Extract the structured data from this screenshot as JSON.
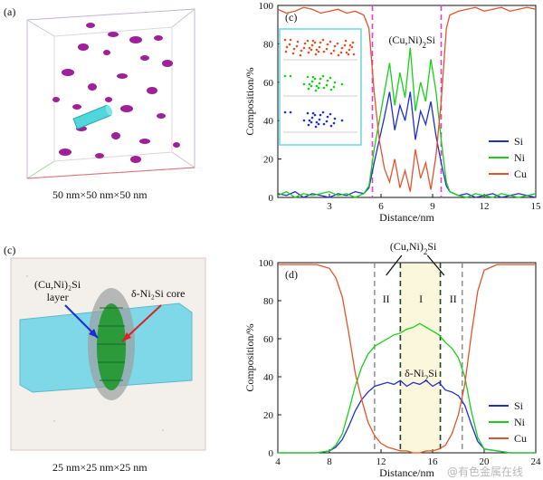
{
  "figure": {
    "panel_a": {
      "label": "(a)",
      "caption": "50 nm×50 nm×50 nm"
    },
    "panel_c_top": {
      "label": "(c)",
      "caption": "25 nm×25 nm×25 nm",
      "ann_layer": "(Cu,Ni)₂Si\nlayer",
      "ann_core": "δ-Ni₂Si core"
    },
    "watermark": "@有色金属在线"
  },
  "colors": {
    "Si": "#1f2fd0",
    "Ni": "#19d019",
    "Cu": "#e2552b",
    "dash_magenta": "#e040d0",
    "dash_gray": "#888888",
    "dash_dark": "#224422",
    "band": "#fbf7dc"
  },
  "chart_data": [
    {
      "type": "line",
      "panel_label": "(c)",
      "annotation": "(Cu,Ni)₂Si",
      "xlabel": "Distance/nm",
      "ylabel": "Composition/%",
      "xlim": [
        0,
        15
      ],
      "ylim": [
        0,
        100
      ],
      "xticks": [
        3,
        6,
        9,
        12,
        15
      ],
      "yticks": [
        0,
        20,
        40,
        60,
        80,
        100
      ],
      "vlines": [
        5.5,
        9.5
      ],
      "legend": "right",
      "x": [
        0,
        0.5,
        1,
        1.5,
        2,
        2.5,
        3,
        3.5,
        4,
        4.5,
        5,
        5.3,
        5.6,
        5.9,
        6.2,
        6.5,
        6.8,
        7.1,
        7.4,
        7.7,
        8,
        8.3,
        8.6,
        8.9,
        9.2,
        9.5,
        9.8,
        10,
        10.5,
        11,
        11.5,
        12,
        12.5,
        13,
        13.5,
        14,
        14.5,
        15
      ],
      "series": [
        {
          "name": "Si",
          "values": [
            2,
            1,
            3,
            0,
            2,
            1,
            0,
            2,
            1,
            3,
            2,
            5,
            18,
            30,
            42,
            55,
            35,
            48,
            40,
            55,
            30,
            45,
            38,
            50,
            32,
            18,
            6,
            3,
            1,
            2,
            0,
            1,
            2,
            0,
            1,
            2,
            1,
            0
          ]
        },
        {
          "name": "Ni",
          "values": [
            1,
            3,
            0,
            2,
            1,
            2,
            3,
            1,
            2,
            0,
            2,
            6,
            25,
            40,
            55,
            70,
            48,
            65,
            52,
            78,
            45,
            60,
            50,
            72,
            55,
            30,
            8,
            3,
            1,
            0,
            2,
            1,
            0,
            2,
            1,
            0,
            1,
            2
          ]
        },
        {
          "name": "Cu",
          "values": [
            98,
            96,
            97,
            99,
            98,
            96,
            97,
            98,
            96,
            97,
            95,
            88,
            55,
            30,
            15,
            8,
            20,
            5,
            14,
            3,
            25,
            10,
            18,
            4,
            22,
            50,
            88,
            95,
            97,
            98,
            99,
            97,
            98,
            99,
            97,
            98,
            99,
            98
          ]
        }
      ]
    },
    {
      "type": "line",
      "panel_label": "(d)",
      "annotation_top": "(Cu,Ni)₂Si",
      "annotation_core": "δ-Ni₂Si",
      "regions": [
        "II",
        "I",
        "II"
      ],
      "xlabel": "Distance/nm",
      "ylabel": "Composition/%",
      "xlim": [
        4,
        24
      ],
      "ylim": [
        0,
        100
      ],
      "xticks": [
        4,
        8,
        12,
        16,
        20,
        24
      ],
      "yticks": [
        0,
        20,
        40,
        60,
        80,
        100
      ],
      "vlines_gray": [
        11.5,
        18.3
      ],
      "vlines_dark": [
        13.5,
        16.6
      ],
      "legend": "bottom-right",
      "x": [
        4,
        5,
        6,
        7,
        8,
        8.5,
        9,
        9.5,
        10,
        10.5,
        11,
        11.5,
        12,
        12.5,
        13,
        13.5,
        14,
        14.5,
        15,
        15.5,
        16,
        16.5,
        17,
        17.5,
        18,
        18.5,
        19,
        19.5,
        20,
        21,
        22,
        23,
        24
      ],
      "series": [
        {
          "name": "Si",
          "values": [
            0,
            0,
            0,
            0,
            1,
            3,
            7,
            14,
            22,
            28,
            32,
            35,
            36,
            37,
            36,
            38,
            35,
            37,
            36,
            38,
            35,
            37,
            33,
            32,
            30,
            25,
            15,
            6,
            2,
            1,
            0,
            0,
            0
          ]
        },
        {
          "name": "Ni",
          "values": [
            0,
            0,
            0,
            0,
            1,
            4,
            10,
            22,
            35,
            45,
            52,
            56,
            58,
            60,
            62,
            63,
            65,
            66,
            68,
            66,
            64,
            62,
            58,
            55,
            50,
            40,
            22,
            8,
            2,
            1,
            0,
            0,
            0
          ]
        },
        {
          "name": "Cu",
          "values": [
            99,
            99,
            99,
            99,
            97,
            92,
            82,
            63,
            42,
            28,
            16,
            9,
            5,
            3,
            2,
            1,
            1,
            0,
            0,
            1,
            1,
            2,
            4,
            10,
            20,
            36,
            62,
            85,
            96,
            99,
            99,
            99,
            99
          ]
        }
      ]
    }
  ]
}
